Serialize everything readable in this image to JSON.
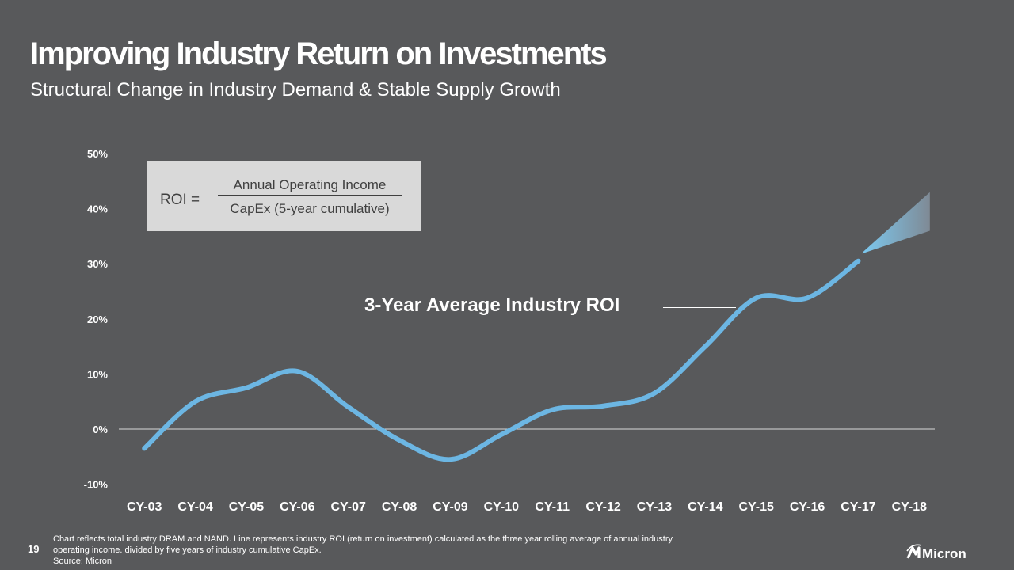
{
  "header": {
    "title": "Improving Industry Return on Investments",
    "subtitle": "Structural Change in Industry Demand & Stable Supply Growth"
  },
  "formula": {
    "label": "ROI =",
    "numerator": "Annual Operating Income",
    "denominator": "CapEx (5-year cumulative)"
  },
  "chart_data": {
    "type": "line",
    "categories": [
      "CY-03",
      "CY-04",
      "CY-05",
      "CY-06",
      "CY-07",
      "CY-08",
      "CY-09",
      "CY-10",
      "CY-11",
      "CY-12",
      "CY-13",
      "CY-14",
      "CY-15",
      "CY-16",
      "CY-17",
      "CY-18"
    ],
    "y_ticks": [
      "50%",
      "40%",
      "30%",
      "20%",
      "10%",
      "0%",
      "-10%"
    ],
    "ylim": [
      -10,
      50
    ],
    "series": [
      {
        "name": "3-Year Average Industry ROI",
        "values": [
          -3.5,
          5,
          7.5,
          10.5,
          4,
          -2,
          -5.5,
          -1,
          3.5,
          4.2,
          6.5,
          15,
          23.8,
          23.8,
          30.5,
          null
        ],
        "projection": {
          "from": "CY-17",
          "to": "CY-18",
          "range": [
            36,
            43
          ]
        }
      }
    ],
    "colors": {
      "line": "#6cb6e3",
      "zero_line": "#d9d9d9",
      "projection_start": "#7cc9f0",
      "projection_end": "#7f8a95"
    },
    "grid": false
  },
  "footnote": {
    "page_number": "19",
    "lines": [
      "Chart reflects total industry DRAM and NAND. Line represents industry ROI (return on investment) calculated as the three year rolling average of annual industry",
      "operating income. divided by five years of industry cumulative CapEx.",
      "Source: Micron"
    ]
  },
  "logo": {
    "text": "Micron"
  }
}
